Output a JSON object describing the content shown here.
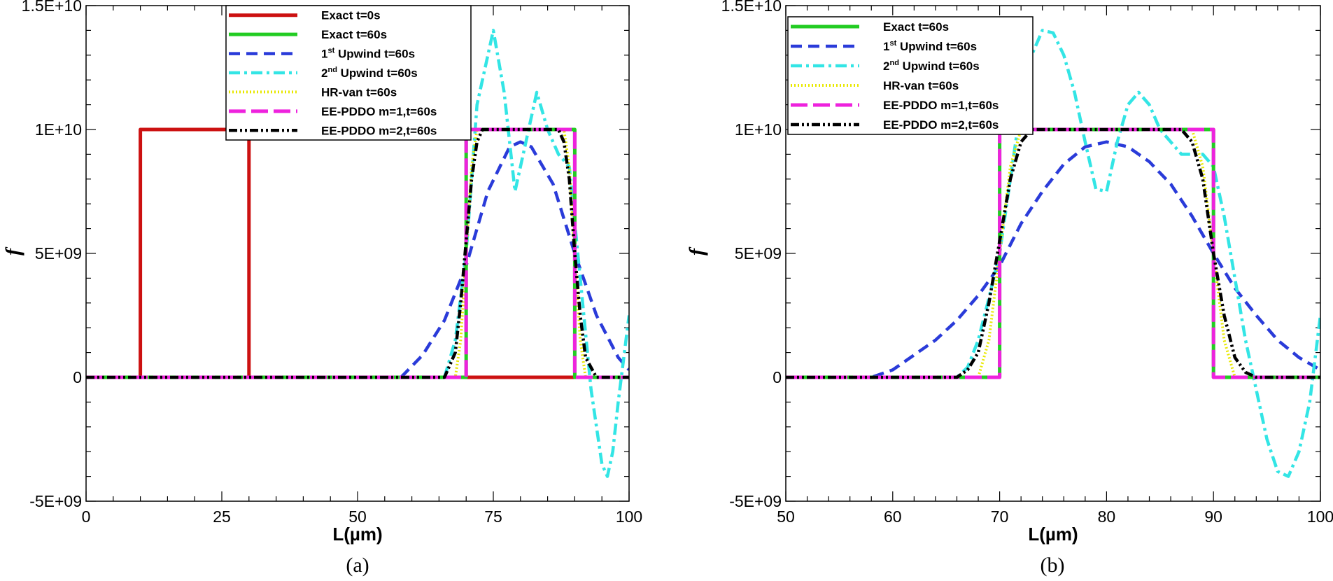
{
  "chart_data": [
    {
      "type": "line",
      "panel_label": "(a)",
      "xlabel": "L(µm)",
      "ylabel": "f",
      "xlim": [
        0,
        100
      ],
      "ylim": [
        -5000000000,
        15000000000
      ],
      "xticks": [
        0,
        25,
        50,
        75,
        100
      ],
      "xtick_labels": [
        "0",
        "25",
        "50",
        "75",
        "100"
      ],
      "yticks": [
        -5000000000,
        0,
        5000000000,
        10000000000,
        15000000000
      ],
      "ytick_labels": [
        "-5E+09",
        "0",
        "5E+09",
        "1E+10",
        "1.5E+10"
      ],
      "legend_position": "top-center",
      "series": [
        {
          "key": "exact0",
          "name": "Exact t=0s",
          "color": "#cc1111",
          "style": "solid",
          "x": [
            0,
            10,
            10,
            30,
            30,
            100
          ],
          "y": [
            0,
            0,
            10000000000,
            10000000000,
            0,
            0
          ]
        },
        {
          "key": "exact60",
          "name": "Exact t=60s",
          "color": "#22cc22",
          "style": "solid",
          "x": [
            0,
            70,
            70,
            90,
            90,
            100
          ],
          "y": [
            0,
            0,
            10000000000,
            10000000000,
            0,
            0
          ]
        },
        {
          "key": "up1",
          "name": "1st Upwind t=60s",
          "name_main": "1",
          "name_sup": "st",
          "name_rest": " Upwind t=60s",
          "color": "#2a3bd9",
          "style": "dashed",
          "x": [
            0,
            58,
            62,
            66,
            70,
            74,
            78,
            80,
            82,
            86,
            90,
            94,
            98,
            100
          ],
          "y": [
            0,
            0,
            900000000,
            2300000000,
            4500000000,
            7500000000,
            9300000000,
            9500000000,
            9300000000,
            7800000000,
            5000000000,
            2500000000,
            800000000,
            300000000
          ]
        },
        {
          "key": "up2",
          "name": "2nd Upwind t=60s",
          "name_main": "2",
          "name_sup": "nd",
          "name_rest": " Upwind t=60s",
          "color": "#33e5e5",
          "style": "dashdot",
          "x": [
            0,
            66,
            68,
            70,
            72,
            75,
            77,
            79,
            81,
            83,
            85,
            87,
            89,
            91,
            93,
            95,
            96,
            97,
            98,
            100
          ],
          "y": [
            0,
            0,
            1500000000,
            5000000000,
            11000000000,
            14000000000,
            11500000000,
            7500000000,
            9500000000,
            11500000000,
            10000000000,
            9000000000,
            8500000000,
            4000000000,
            -500000000,
            -3500000000,
            -4000000000,
            -3000000000,
            -1000000000,
            2500000000
          ]
        },
        {
          "key": "hr",
          "name": "HR-van t=60s",
          "color": "#e8e800",
          "style": "dotted",
          "x": [
            0,
            68,
            69,
            70,
            71,
            72,
            88,
            89,
            90,
            91,
            92,
            100
          ],
          "y": [
            0,
            0,
            1500000000,
            5000000000,
            8500000000,
            10000000000,
            10000000000,
            8500000000,
            5000000000,
            1500000000,
            0,
            0
          ]
        },
        {
          "key": "ee1",
          "name": "EE-PDDO m=1,t=60s",
          "color": "#ee22dd",
          "style": "longdash",
          "x": [
            0,
            70,
            70,
            90,
            90,
            100
          ],
          "y": [
            0,
            0,
            10000000000,
            10000000000,
            0,
            0
          ]
        },
        {
          "key": "ee2",
          "name": "EE-PDDO m=2,t=60s",
          "color": "#000000",
          "style": "dashdotdot",
          "x": [
            0,
            66,
            68,
            69,
            70,
            71,
            72,
            73,
            87,
            88,
            89,
            90,
            91,
            92,
            94,
            100
          ],
          "y": [
            0,
            0,
            1000000000,
            3000000000,
            5500000000,
            8000000000,
            9500000000,
            10000000000,
            10000000000,
            9500000000,
            8000000000,
            5000000000,
            2500000000,
            800000000,
            0,
            0
          ]
        }
      ]
    },
    {
      "type": "line",
      "panel_label": "(b)",
      "xlabel": "L(µm)",
      "ylabel": "f",
      "xlim": [
        50,
        100
      ],
      "ylim": [
        -5000000000,
        15000000000
      ],
      "xticks": [
        50,
        60,
        70,
        80,
        90,
        100
      ],
      "xtick_labels": [
        "50",
        "60",
        "70",
        "80",
        "90",
        "100"
      ],
      "yticks": [
        -5000000000,
        0,
        5000000000,
        10000000000,
        15000000000
      ],
      "ytick_labels": [
        "-5E+09",
        "0",
        "5E+09",
        "1E+10",
        "1.5E+10"
      ],
      "legend_position": "top-left",
      "series": [
        {
          "key": "exact60",
          "name": "Exact t=60s",
          "color": "#22cc22",
          "style": "solid",
          "x": [
            50,
            70,
            70,
            90,
            90,
            100
          ],
          "y": [
            0,
            0,
            10000000000,
            10000000000,
            0,
            0
          ]
        },
        {
          "key": "up1",
          "name": "1st Upwind t=60s",
          "name_main": "1",
          "name_sup": "st",
          "name_rest": " Upwind t=60s",
          "color": "#2a3bd9",
          "style": "dashed",
          "x": [
            50,
            58,
            60,
            62,
            64,
            66,
            68,
            70,
            72,
            74,
            76,
            78,
            80,
            82,
            84,
            86,
            88,
            90,
            92,
            94,
            96,
            98,
            100
          ],
          "y": [
            0,
            0,
            300000000,
            900000000,
            1500000000,
            2300000000,
            3300000000,
            4500000000,
            6200000000,
            7500000000,
            8600000000,
            9300000000,
            9500000000,
            9300000000,
            8700000000,
            7800000000,
            6500000000,
            5000000000,
            3600000000,
            2500000000,
            1500000000,
            800000000,
            300000000
          ]
        },
        {
          "key": "up2",
          "name": "2nd Upwind t=60s",
          "name_main": "2",
          "name_sup": "nd",
          "name_rest": " Upwind t=60s",
          "color": "#33e5e5",
          "style": "dashdot",
          "x": [
            50,
            66,
            67,
            68,
            69,
            70,
            71,
            72,
            73,
            74,
            75,
            76,
            77,
            78,
            79,
            80,
            81,
            82,
            83,
            84,
            85,
            86,
            87,
            88,
            89,
            90,
            91,
            92,
            93,
            94,
            95,
            96,
            97,
            98,
            99,
            100
          ],
          "y": [
            0,
            0,
            400000000,
            1500000000,
            3200000000,
            5000000000,
            8000000000,
            11000000000,
            13000000000,
            14000000000,
            13900000000,
            13000000000,
            11500000000,
            9500000000,
            7600000000,
            7500000000,
            9500000000,
            11000000000,
            11500000000,
            11000000000,
            10000000000,
            9500000000,
            9000000000,
            9000000000,
            9000000000,
            8500000000,
            6500000000,
            4000000000,
            1500000000,
            -500000000,
            -2500000000,
            -3800000000,
            -4000000000,
            -3000000000,
            -1000000000,
            2500000000
          ]
        },
        {
          "key": "hr",
          "name": "HR-van t=60s",
          "color": "#e8e800",
          "style": "dotted",
          "x": [
            50,
            68,
            69,
            70,
            71,
            72,
            88,
            89,
            90,
            91,
            92,
            100
          ],
          "y": [
            0,
            0,
            1500000000,
            5000000000,
            8500000000,
            10000000000,
            10000000000,
            8500000000,
            5000000000,
            1500000000,
            0,
            0
          ]
        },
        {
          "key": "ee1",
          "name": "EE-PDDO m=1,t=60s",
          "color": "#ee22dd",
          "style": "longdash",
          "x": [
            50,
            70,
            70,
            90,
            90,
            100
          ],
          "y": [
            0,
            0,
            10000000000,
            10000000000,
            0,
            0
          ]
        },
        {
          "key": "ee2",
          "name": "EE-PDDO m=2,t=60s",
          "color": "#000000",
          "style": "dashdotdot",
          "x": [
            50,
            66,
            67,
            68,
            69,
            70,
            71,
            72,
            73,
            87,
            88,
            89,
            90,
            91,
            92,
            93,
            94,
            100
          ],
          "y": [
            0,
            0,
            300000000,
            1000000000,
            3000000000,
            5500000000,
            8000000000,
            9500000000,
            10000000000,
            10000000000,
            9500000000,
            8000000000,
            5000000000,
            2500000000,
            800000000,
            200000000,
            0,
            0
          ]
        }
      ]
    }
  ]
}
